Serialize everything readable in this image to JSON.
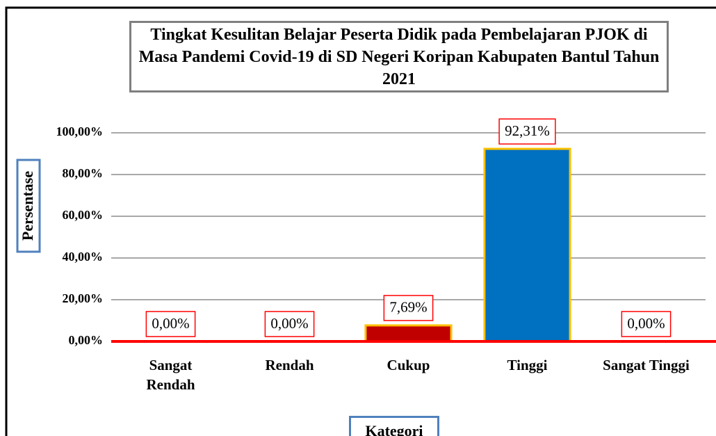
{
  "chart_data": {
    "type": "bar",
    "title": "Tingkat Kesulitan Belajar Peserta Didik pada Pembelajaran PJOK di Masa Pandemi Covid-19 di SD Negeri Koripan Kabupaten Bantul Tahun 2021",
    "x_label": "Kategori",
    "y_label": "Persentase",
    "categories": [
      "Sangat Rendah",
      "Rendah",
      "Cukup",
      "Tinggi",
      "Sangat Tinggi"
    ],
    "values": [
      0,
      0,
      7.69,
      92.31,
      0
    ],
    "value_labels": [
      "0,00%",
      "0,00%",
      "7,69%",
      "92,31%",
      "0,00%"
    ],
    "colors": [
      "#c00000",
      "#c00000",
      "#c00000",
      "#0070c0",
      "#c00000"
    ],
    "edge_color": "#ffc000",
    "ylim": [
      0,
      100
    ],
    "yticks": [
      {
        "value": 0,
        "label": "0,00%"
      },
      {
        "value": 20,
        "label": "20,00%"
      },
      {
        "value": 40,
        "label": "40,00%"
      },
      {
        "value": 60,
        "label": "60,00%"
      },
      {
        "value": 80,
        "label": "80,00%"
      },
      {
        "value": 100,
        "label": "100,00%"
      }
    ],
    "grid": true
  }
}
